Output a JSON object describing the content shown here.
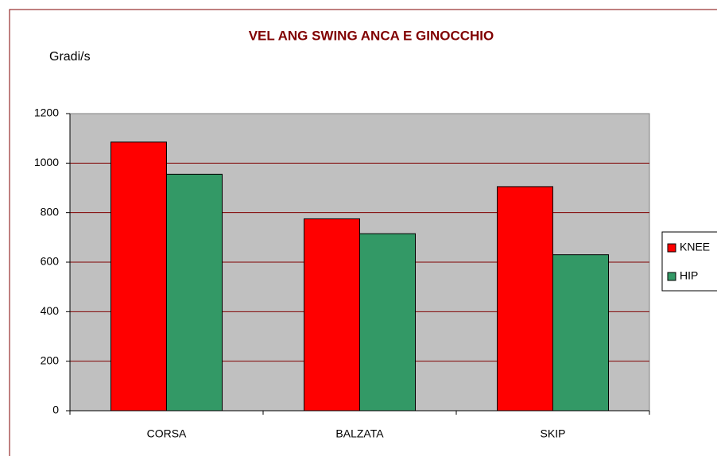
{
  "chart_data": {
    "type": "bar",
    "title": "VEL ANG SWING ANCA E GINOCCHIO",
    "y_label": "Gradi/s",
    "categories": [
      "CORSA",
      "BALZATA",
      "SKIP"
    ],
    "series": [
      {
        "name": "KNEE",
        "color": "#ff0000",
        "values": [
          1085,
          775,
          905
        ]
      },
      {
        "name": "HIP",
        "color": "#339966",
        "values": [
          955,
          715,
          630
        ]
      }
    ],
    "ylim": [
      0,
      1200
    ],
    "yticks": [
      0,
      200,
      400,
      600,
      800,
      1000,
      1200
    ],
    "grid": true,
    "legend": "right"
  }
}
